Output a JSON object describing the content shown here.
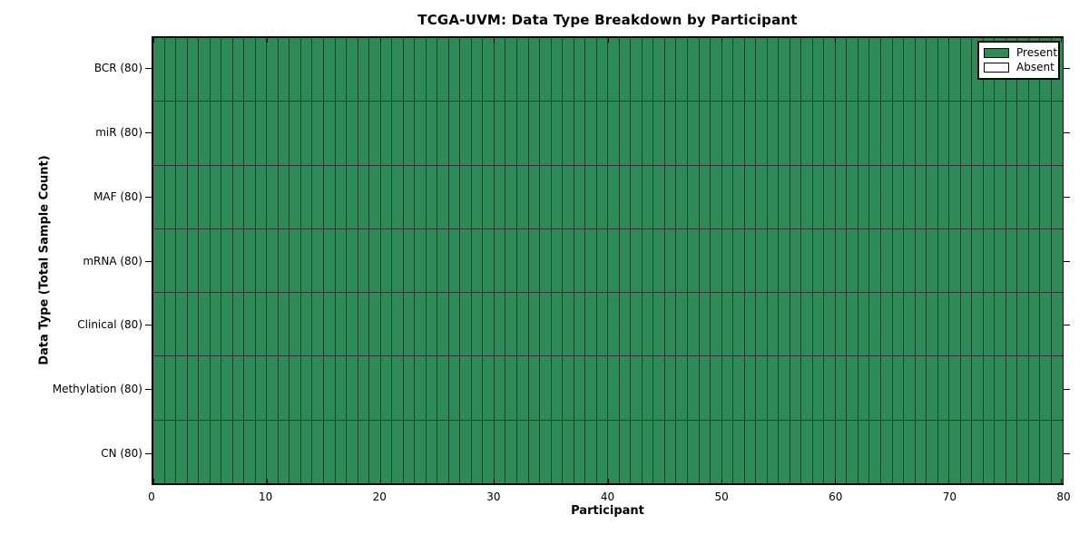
{
  "chart_data": {
    "type": "heatmap",
    "title": "TCGA-UVM: Data Type Breakdown by Participant",
    "xlabel": "Participant",
    "ylabel": "Data Type (Total Sample Count)",
    "xlim": [
      0,
      80
    ],
    "x_ticks": [
      0,
      10,
      20,
      30,
      40,
      50,
      60,
      70,
      80
    ],
    "n_participants": 80,
    "grid": "cell borders on",
    "legend_position": "upper right",
    "rows": [
      {
        "label": "BCR (80)",
        "data_type": "BCR",
        "total_samples": 80,
        "present_count": 80,
        "absent_count": 0
      },
      {
        "label": "miR (80)",
        "data_type": "miR",
        "total_samples": 80,
        "present_count": 80,
        "absent_count": 0
      },
      {
        "label": "MAF (80)",
        "data_type": "MAF",
        "total_samples": 80,
        "present_count": 80,
        "absent_count": 0
      },
      {
        "label": "mRNA (80)",
        "data_type": "mRNA",
        "total_samples": 80,
        "present_count": 80,
        "absent_count": 0
      },
      {
        "label": "Clinical (80)",
        "data_type": "Clinical",
        "total_samples": 80,
        "present_count": 80,
        "absent_count": 0
      },
      {
        "label": "Methylation (80)",
        "data_type": "Methylation",
        "total_samples": 80,
        "present_count": 80,
        "absent_count": 0
      },
      {
        "label": "CN (80)",
        "data_type": "CN",
        "total_samples": 80,
        "present_count": 80,
        "absent_count": 0
      }
    ],
    "cell_note": "every cell (7 data types x 80 participants) is Present",
    "legend": [
      {
        "label": "Present",
        "state": "present"
      },
      {
        "label": "Absent",
        "state": "absent"
      }
    ]
  },
  "colors": {
    "present": "#2e8b57",
    "absent": "#ffffff",
    "edge": "#000000",
    "background": "#ffffff"
  }
}
